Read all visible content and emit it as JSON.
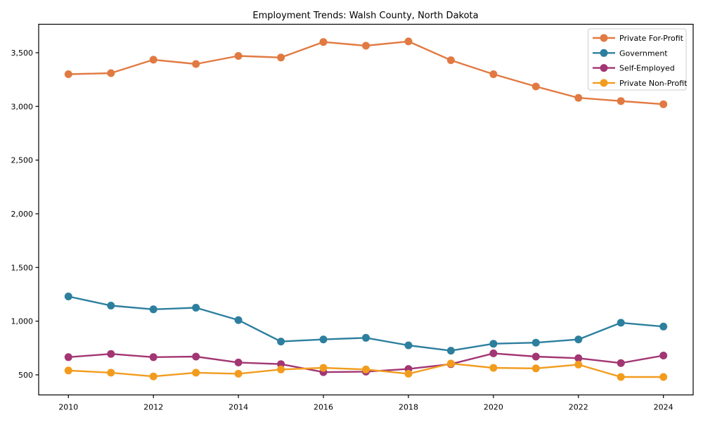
{
  "chart_data": {
    "type": "line",
    "title": "Employment Trends: Walsh County, North Dakota",
    "xlabel": "",
    "ylabel": "",
    "x": [
      2010,
      2011,
      2012,
      2013,
      2014,
      2015,
      2016,
      2017,
      2018,
      2019,
      2020,
      2021,
      2022,
      2023,
      2024
    ],
    "series": [
      {
        "id": "private-for-profit",
        "name": "Private For-Profit",
        "color": "#e17a42",
        "values": [
          3300,
          3310,
          3435,
          3395,
          3470,
          3455,
          3600,
          3565,
          3605,
          3430,
          3300,
          3185,
          3080,
          3050,
          3020
        ]
      },
      {
        "id": "government",
        "name": "Government",
        "color": "#2d7f9e",
        "values": [
          1230,
          1145,
          1110,
          1125,
          1010,
          810,
          830,
          845,
          775,
          725,
          790,
          800,
          830,
          985,
          950
        ]
      },
      {
        "id": "self-employed",
        "name": "Self-Employed",
        "color": "#a23673",
        "values": [
          665,
          695,
          665,
          670,
          615,
          600,
          525,
          530,
          555,
          600,
          700,
          670,
          655,
          610,
          680
        ]
      },
      {
        "id": "private-non-profit",
        "name": "Private Non-Profit",
        "color": "#f29c1e",
        "values": [
          540,
          520,
          485,
          520,
          510,
          550,
          565,
          550,
          510,
          605,
          565,
          560,
          595,
          480,
          480
        ]
      }
    ],
    "xticks": [
      2010,
      2012,
      2014,
      2016,
      2018,
      2020,
      2022,
      2024
    ],
    "xtick_labels": [
      "2010",
      "2012",
      "2014",
      "2016",
      "2018",
      "2020",
      "2022",
      "2024"
    ],
    "yticks": [
      500,
      1000,
      1500,
      2000,
      2500,
      3000,
      3500
    ],
    "ytick_labels": [
      "500",
      "1,000",
      "1,500",
      "2,000",
      "2,500",
      "3,000",
      "3,500"
    ],
    "xlim": [
      2009.3,
      2024.7
    ],
    "ylim": [
      313,
      3765
    ],
    "grid": false,
    "legend_position": "upper right",
    "axis_color": "#000000",
    "background_color": "#ffffff",
    "legend_border_color": "#cccccc"
  }
}
